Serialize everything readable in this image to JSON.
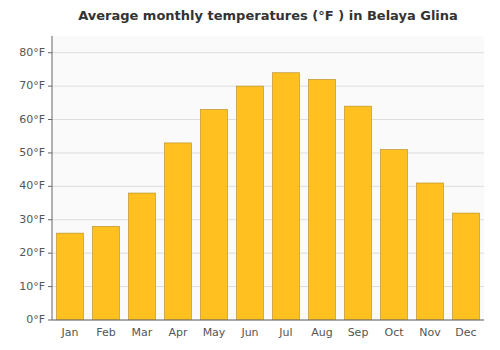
{
  "chart_data": {
    "type": "bar",
    "title": "Average monthly temperatures (°F ) in Belaya Glina",
    "categories": [
      "Jan",
      "Feb",
      "Mar",
      "Apr",
      "May",
      "Jun",
      "Jul",
      "Aug",
      "Sep",
      "Oct",
      "Nov",
      "Dec"
    ],
    "values": [
      26,
      28,
      38,
      53,
      63,
      70,
      74,
      72,
      64,
      51,
      41,
      32
    ],
    "color": "#FFC020",
    "ylim": [
      0,
      85
    ],
    "yticks": [
      {
        "value": 0,
        "label": "0°F"
      },
      {
        "value": 10,
        "label": "10°F"
      },
      {
        "value": 20,
        "label": "20°F"
      },
      {
        "value": 30,
        "label": "30°F"
      },
      {
        "value": 40,
        "label": "40°F"
      },
      {
        "value": 50,
        "label": "50°F"
      },
      {
        "value": 60,
        "label": "60°F"
      },
      {
        "value": 70,
        "label": "70°F"
      },
      {
        "value": 80,
        "label": "80°F"
      }
    ],
    "grid": true
  }
}
